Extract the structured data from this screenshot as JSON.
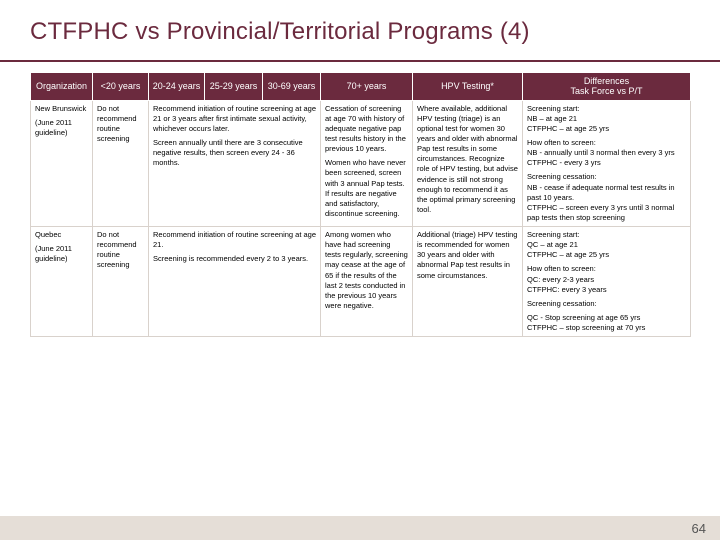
{
  "page": {
    "title": "CTFPHC vs Provincial/Territorial Programs (4)",
    "number": "64"
  },
  "colors": {
    "header_bg": "#6b2a3e",
    "header_text": "#ffffff",
    "footer_bg": "#e5ded7",
    "cell_border": "#d9d2cc"
  },
  "table": {
    "columns": [
      "Organization",
      "<20 years",
      "20-24 years",
      "25-29 years",
      "30-69 years",
      "70+ years",
      "HPV Testing*",
      "Differences\nTask Force vs P/T"
    ],
    "rows": [
      {
        "org_line1": "New Brunswick",
        "org_line2": "(June 2011 guideline)",
        "lt20": "Do not recommend routine screening",
        "recommend_p1": "Recommend initiation of routine screening at age 21 or 3 years after first intimate sexual activity, whichever occurs later.",
        "recommend_p2": "Screen annually until there are 3 consecutive negative results, then screen every 24 - 36 months.",
        "y70_p1": "Cessation of screening at age 70 with history of adequate negative pap test results history in the previous 10 years.",
        "y70_p2": "Women who have never been screened, screen with 3 annual Pap tests. If results are negative and satisfactory, discontinue screening.",
        "hpv": "Where available, additional HPV testing (triage) is an optional test for women 30 years and older with abnormal Pap test results in some circumstances. Recognize role of HPV testing, but advise evidence is still not strong enough to recommend it as the optimal primary screening tool.",
        "diff_p1": "Screening start:\nNB – at age 21\nCTFPHC – at age 25 yrs",
        "diff_p2": "How often to screen:\nNB - annually until 3 normal then every 3 yrs\nCTFPHC - every 3 yrs",
        "diff_p3": "Screening cessation:\nNB - cease if adequate normal test results in past 10 years.\nCTFPHC – screen every 3 yrs until 3 normal pap tests then stop screening"
      },
      {
        "org_line1": "Quebec",
        "org_line2": "(June 2011 guideline)",
        "lt20": "Do not recommend routine screening",
        "recommend_p1": "Recommend initiation of routine screening at age 21.",
        "recommend_p2": "Screening is recommended every 2 to 3 years.",
        "y70_p1": "Among women who have had screening tests regularly, screening may cease at the age of 65 if the results of the last 2 tests conducted in the previous 10 years were negative.",
        "y70_p2": "",
        "hpv": "Additional (triage) HPV testing is recommended for women 30 years and older with abnormal Pap test results in some circumstances.",
        "diff_p1": "Screening start:\nQC – at age 21\nCTFPHC – at age 25 yrs",
        "diff_p2": "How often to screen:\nQC: every 2-3 years\nCTFPHC: every 3 years",
        "diff_p3": "Screening cessation:",
        "diff_p4": "QC - Stop screening at age 65 yrs\nCTFPHC – stop screening at 70 yrs"
      }
    ]
  }
}
